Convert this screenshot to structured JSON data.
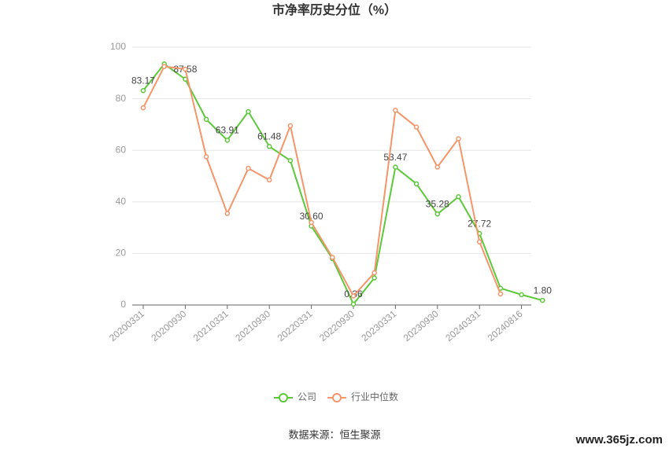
{
  "chart_data": {
    "type": "line",
    "title": "市净率历史分位（%）",
    "categories": [
      "20200331",
      null,
      "20200930",
      null,
      "20210331",
      null,
      "20210930",
      null,
      "20220331",
      null,
      "20220930",
      null,
      "20230331",
      null,
      "20230930",
      null,
      "20240331",
      null,
      "20240816",
      null
    ],
    "series": [
      {
        "name": "公司",
        "color": "#5cc83a",
        "values": [
          83.17,
          93.5,
          87.58,
          72,
          63.91,
          75,
          61.48,
          56,
          30.6,
          18,
          0.36,
          10.5,
          53.47,
          47,
          35.28,
          42,
          27.72,
          6.5,
          4,
          1.8
        ],
        "value_labels": [
          "83.17",
          null,
          "87.58",
          null,
          "63.91",
          null,
          "61.48",
          null,
          "30.60",
          null,
          "0.36",
          null,
          "53.47",
          null,
          "35.28",
          null,
          "27.72",
          null,
          null,
          "1.80"
        ]
      },
      {
        "name": "行业中位数",
        "color": "#f4956a",
        "values": [
          76.5,
          92.5,
          91.5,
          57.5,
          35.5,
          53,
          48.5,
          69.5,
          32,
          18.5,
          3.5,
          12.5,
          75.5,
          69,
          53.5,
          64.5,
          24.5,
          4.3,
          null,
          null
        ]
      }
    ],
    "ylim": [
      0,
      100
    ],
    "yticks": [
      0,
      20,
      40,
      60,
      80,
      100
    ],
    "grid": true,
    "legend": "bottom",
    "source": "数据来源：恒生聚源",
    "watermark": "www.365jz.com"
  }
}
